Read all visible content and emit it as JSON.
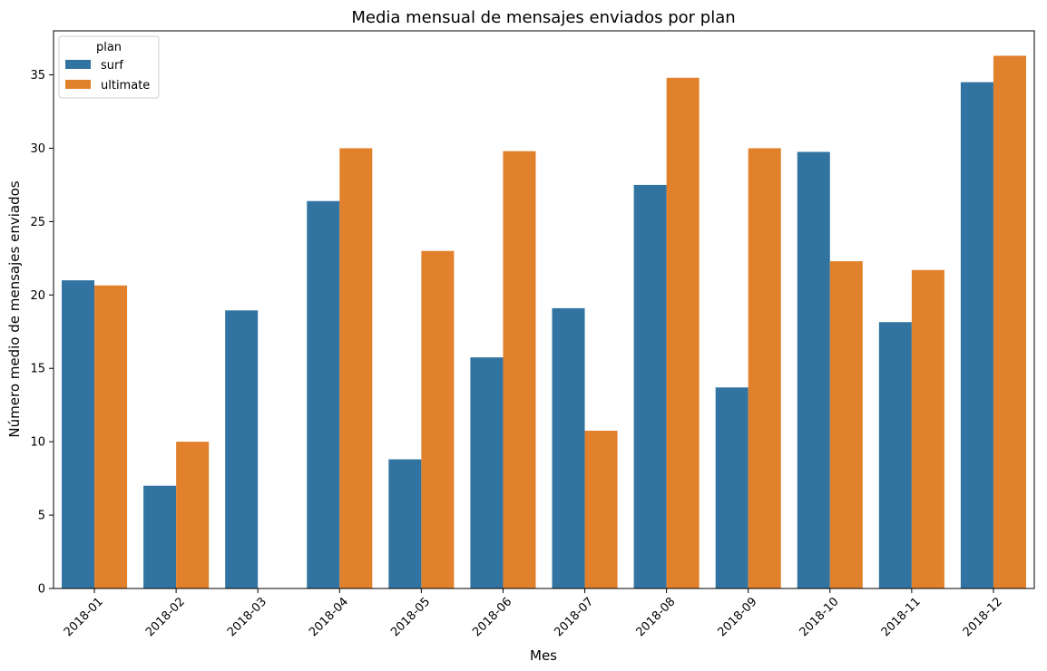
{
  "chart_data": {
    "type": "bar",
    "title": "Media mensual de mensajes enviados por plan",
    "xlabel": "Mes",
    "ylabel": "Número medio de mensajes enviados",
    "categories": [
      "2018-01",
      "2018-02",
      "2018-03",
      "2018-04",
      "2018-05",
      "2018-06",
      "2018-07",
      "2018-08",
      "2018-09",
      "2018-10",
      "2018-11",
      "2018-12"
    ],
    "series": [
      {
        "name": "surf",
        "color": "#3274a1",
        "values": [
          21.0,
          7.0,
          18.95,
          26.4,
          8.8,
          15.75,
          19.1,
          27.5,
          13.7,
          29.75,
          18.15,
          34.5
        ]
      },
      {
        "name": "ultimate",
        "color": "#e1812c",
        "values": [
          20.65,
          10.0,
          null,
          30.0,
          23.0,
          29.8,
          10.75,
          34.8,
          30.0,
          22.3,
          21.7,
          36.3
        ]
      }
    ],
    "ylim": [
      0,
      38
    ],
    "yticks": [
      0,
      5,
      10,
      15,
      20,
      25,
      30,
      35
    ],
    "legend": {
      "title": "plan",
      "position": "top-left"
    },
    "grid": false
  }
}
